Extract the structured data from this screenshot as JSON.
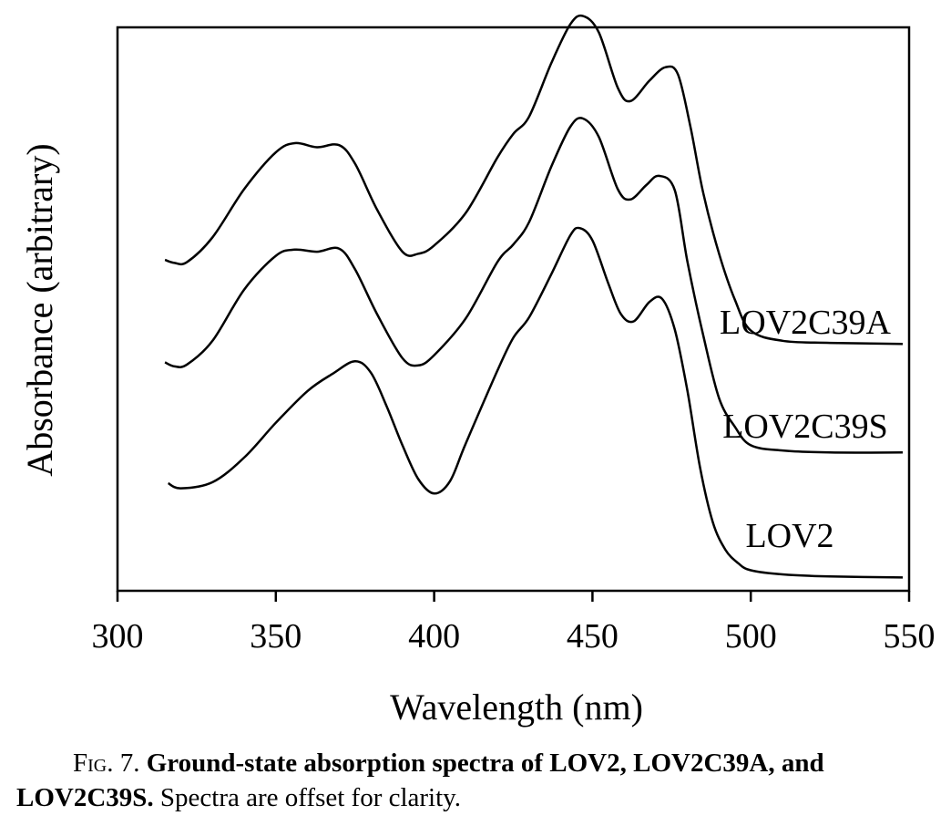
{
  "chart_data": {
    "type": "line",
    "title": "",
    "xlabel": "Wavelength (nm)",
    "ylabel": "Absorbance (arbitrary)",
    "xlim": [
      300,
      550
    ],
    "ylim": [
      0,
      5.5
    ],
    "xticks": [
      300,
      350,
      400,
      450,
      500,
      550
    ],
    "yticks_shown": false,
    "grid": false,
    "legend": "none (series labelled directly at right)",
    "note": "",
    "series": [
      {
        "name": "LOV2C39A",
        "x": [
          315,
          318,
          322,
          330,
          340,
          350,
          356,
          363,
          370,
          375,
          382,
          390,
          395,
          400,
          410,
          420,
          425,
          430,
          437,
          443,
          447,
          452,
          458,
          462,
          468,
          473,
          477,
          481,
          485,
          490,
          495,
          500,
          510,
          525,
          548
        ],
        "y": [
          3.23,
          3.2,
          3.21,
          3.45,
          3.92,
          4.28,
          4.37,
          4.33,
          4.35,
          4.17,
          3.72,
          3.31,
          3.29,
          3.37,
          3.69,
          4.23,
          4.46,
          4.63,
          5.15,
          5.53,
          5.61,
          5.45,
          4.91,
          4.78,
          4.98,
          5.11,
          5.04,
          4.52,
          3.88,
          3.29,
          2.84,
          2.54,
          2.44,
          2.42,
          2.41
        ]
      },
      {
        "name": "LOV2C39S",
        "x": [
          315,
          318,
          322,
          330,
          340,
          350,
          356,
          363,
          370,
          375,
          382,
          390,
          395,
          400,
          410,
          420,
          425,
          430,
          437,
          443,
          447,
          452,
          458,
          462,
          467,
          471,
          476,
          480,
          485,
          490,
          495,
          500,
          510,
          525,
          548
        ],
        "y": [
          2.23,
          2.19,
          2.21,
          2.44,
          2.94,
          3.27,
          3.33,
          3.31,
          3.34,
          3.14,
          2.7,
          2.27,
          2.2,
          2.3,
          2.66,
          3.21,
          3.38,
          3.6,
          4.14,
          4.53,
          4.61,
          4.43,
          3.92,
          3.82,
          3.96,
          4.05,
          3.91,
          3.21,
          2.49,
          1.88,
          1.6,
          1.42,
          1.37,
          1.35,
          1.35
        ]
      },
      {
        "name": "LOV2",
        "x": [
          316,
          320,
          330,
          340,
          350,
          360,
          368,
          375,
          380,
          385,
          390,
          395,
          400,
          405,
          410,
          420,
          425,
          430,
          437,
          443,
          446,
          450,
          455,
          459,
          463,
          468,
          472,
          476,
          480,
          484,
          488,
          492,
          496,
          500,
          510,
          525,
          548
        ],
        "y": [
          1.05,
          1.0,
          1.06,
          1.3,
          1.64,
          1.95,
          2.12,
          2.24,
          2.13,
          1.8,
          1.42,
          1.09,
          0.95,
          1.07,
          1.44,
          2.15,
          2.47,
          2.67,
          3.09,
          3.47,
          3.54,
          3.42,
          3.0,
          2.7,
          2.63,
          2.82,
          2.85,
          2.55,
          1.95,
          1.2,
          0.67,
          0.4,
          0.27,
          0.2,
          0.16,
          0.14,
          0.13
        ]
      }
    ]
  },
  "caption": {
    "figure_number": "Fig. 7.",
    "bold_text": "Ground-state absorption spectra of LOV2, LOV2C39A, and LOV2C39S.",
    "plain_text": " Spectra are offset for clarity."
  }
}
